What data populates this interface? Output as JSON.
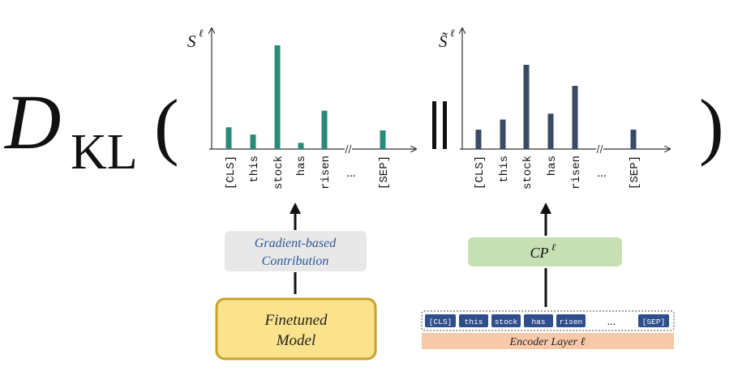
{
  "formula": {
    "d_symbol": "D",
    "d_subscript": "KL",
    "open_paren": "(",
    "separator": "||",
    "close_paren": ")"
  },
  "colors": {
    "teal": "#2a8a78",
    "navy": "#3a4a66",
    "gray_box": "#e8e8e8",
    "green_box": "#c6e0b4",
    "yellow_fill": "#fbe28c",
    "yellow_border": "#c9a227",
    "encoder_fill": "#f8c9a8",
    "token_chip": "#2f4e8c",
    "blue_text": "#2e5597"
  },
  "left_panel": {
    "y_label": "S",
    "y_superscript": "ℓ",
    "tick_labels": [
      "[CLS]",
      "this",
      "stock",
      "has",
      "risen",
      "...",
      "[SEP]"
    ],
    "process_box": {
      "line1": "Gradient-based",
      "line2": "Contribution"
    },
    "model_box": {
      "line1": "Finetuned",
      "line2": "Model"
    }
  },
  "right_panel": {
    "y_label": "S̃",
    "y_superscript": "ℓ",
    "tick_labels": [
      "[CLS]",
      "this",
      "stock",
      "has",
      "risen",
      "...",
      "[SEP]"
    ],
    "process_box": {
      "label": "CP",
      "superscript": "ℓ"
    },
    "encoder_tokens": [
      "[CLS]",
      "this",
      "stock",
      "has",
      "risen",
      "...",
      "[SEP]"
    ],
    "encoder_label": "Encoder Layer ℓ"
  },
  "chart_data": [
    {
      "type": "bar",
      "categories": [
        "[CLS]",
        "this",
        "stock",
        "has",
        "risen",
        "[SEP]"
      ],
      "values": [
        0.21,
        0.14,
        1.0,
        0.06,
        0.37,
        0.18
      ],
      "ylim": [
        0,
        1.05
      ],
      "grid": false,
      "color": "#2a8a78"
    },
    {
      "type": "bar",
      "categories": [
        "[CLS]",
        "this",
        "stock",
        "has",
        "risen",
        "[SEP]"
      ],
      "values": [
        0.23,
        0.35,
        1.0,
        0.42,
        0.75,
        0.23
      ],
      "ylim": [
        0,
        1.0
      ],
      "grid": false,
      "color": "#3a4a66"
    }
  ]
}
